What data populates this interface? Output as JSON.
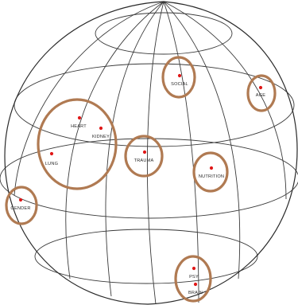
{
  "colors": {
    "grid": "#3a3a3a",
    "ring": "#b07a52",
    "dot": "#e01818",
    "label": "#2a2a2a",
    "background": "#ffffff"
  },
  "groups": [
    {
      "id": "social",
      "points": [
        {
          "label": "SOCIAL"
        }
      ]
    },
    {
      "id": "age",
      "points": [
        {
          "label": "AGE"
        }
      ]
    },
    {
      "id": "cardio",
      "points": [
        {
          "label": "HEART"
        },
        {
          "label": "KIDNEY"
        },
        {
          "label": "LUNG"
        }
      ]
    },
    {
      "id": "trauma",
      "points": [
        {
          "label": "TRAUMA"
        }
      ]
    },
    {
      "id": "nutrition",
      "points": [
        {
          "label": "NUTRITION"
        }
      ]
    },
    {
      "id": "gender",
      "points": [
        {
          "label": "GENDER"
        }
      ]
    },
    {
      "id": "neuro",
      "points": [
        {
          "label": "PSY"
        },
        {
          "label": "BRAIN"
        }
      ]
    }
  ]
}
